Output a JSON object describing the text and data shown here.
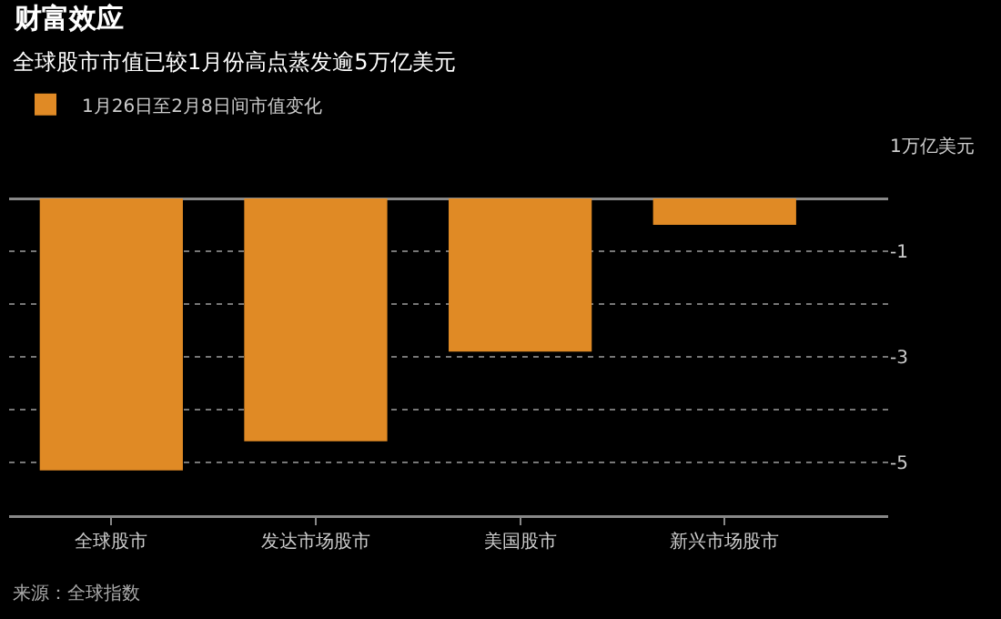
{
  "chart_data": {
    "type": "bar",
    "title": "财富效应",
    "subtitle": "全球股市市值已较1月份高点蒸发逾5万亿美元",
    "categories": [
      "全球股市",
      "发达市场股市",
      "美国股市",
      "新兴市场股市"
    ],
    "series": [
      {
        "name": "1月26日至2月8日间市值变化",
        "color": "#e08a25",
        "values": [
          -5.15,
          -4.6,
          -2.9,
          -0.5
        ]
      }
    ],
    "ylim": [
      -6,
      1
    ],
    "yticks": [
      {
        "value": 1,
        "label": "1万亿美元"
      },
      {
        "value": 0,
        "label": null
      },
      -1,
      {
        "value": -2,
        "label": null
      },
      -3,
      {
        "value": -4,
        "label": null
      },
      -5
    ],
    "grid": "y",
    "legend": "top left",
    "annotations": [
      "来源：全球指数"
    ]
  }
}
